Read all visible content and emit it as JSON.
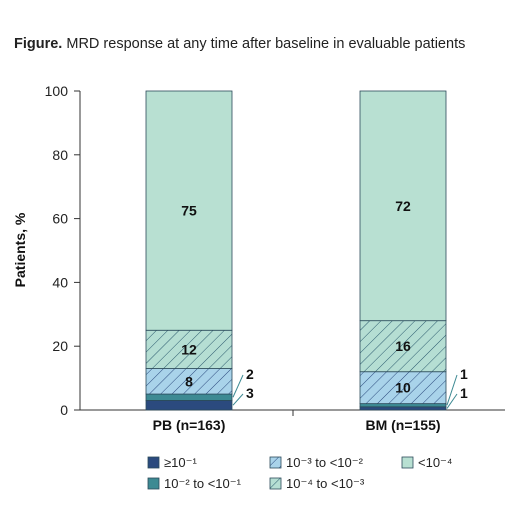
{
  "title": {
    "prefix": "Figure.",
    "text": " MRD response at any time after baseline in evaluable patients"
  },
  "chart_data": {
    "type": "bar",
    "stacked": true,
    "categories": [
      "PB (n=163)",
      "BM (n=155)"
    ],
    "ylabel": "Patients, %",
    "xlabel": "",
    "ylim": [
      0,
      100
    ],
    "yticks": [
      0,
      20,
      40,
      60,
      80,
      100
    ],
    "series": [
      {
        "name": "≥10⁻¹",
        "values": [
          3,
          1
        ],
        "labels": [
          "3",
          "1"
        ],
        "color": "#2b4a7e",
        "pattern": "solid"
      },
      {
        "name": "10⁻² to <10⁻¹",
        "values": [
          2,
          1
        ],
        "labels": [
          "2",
          "1"
        ],
        "color": "#3d8a93",
        "pattern": "solid"
      },
      {
        "name": "10⁻³ to <10⁻²",
        "values": [
          8,
          10
        ],
        "labels": [
          "8",
          "10"
        ],
        "color": "#a9d3ea",
        "pattern": "hatch"
      },
      {
        "name": "10⁻⁴ to <10⁻³",
        "values": [
          12,
          16
        ],
        "labels": [
          "12",
          "16"
        ],
        "color": "#b5ded3",
        "pattern": "hatch"
      },
      {
        "name": "<10⁻⁴",
        "values": [
          75,
          72
        ],
        "labels": [
          "75",
          "72"
        ],
        "color": "#b8e0d2",
        "pattern": "solid"
      }
    ],
    "legend": {
      "position": "bottom"
    }
  }
}
